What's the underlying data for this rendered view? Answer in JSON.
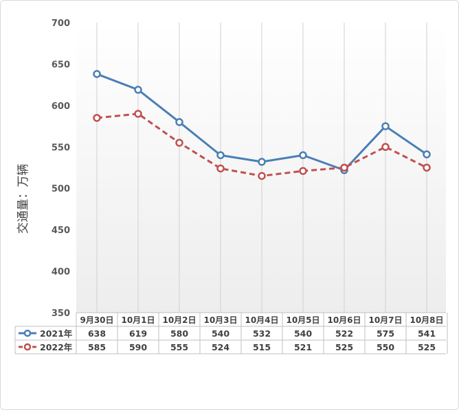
{
  "chart_data": {
    "type": "line",
    "ylabel": "交通量：万辆",
    "ylim": [
      350,
      700
    ],
    "yticks": [
      350,
      400,
      450,
      500,
      550,
      600,
      650,
      700
    ],
    "categories": [
      "9月30日",
      "10月1日",
      "10月2日",
      "10月3日",
      "10月4日",
      "10月5日",
      "10月6日",
      "10月7日",
      "10月8日"
    ],
    "series": [
      {
        "name": "2021年",
        "values": [
          638,
          619,
          580,
          540,
          532,
          540,
          522,
          575,
          541
        ],
        "color": "#4a7eb5",
        "dash": "solid"
      },
      {
        "name": "2022年",
        "values": [
          585,
          590,
          555,
          524,
          515,
          521,
          525,
          550,
          525
        ],
        "color": "#c0504d",
        "dash": "dashed"
      }
    ],
    "grid": {
      "vertical": true,
      "horizontal": false
    },
    "legend": "table-bottom"
  }
}
